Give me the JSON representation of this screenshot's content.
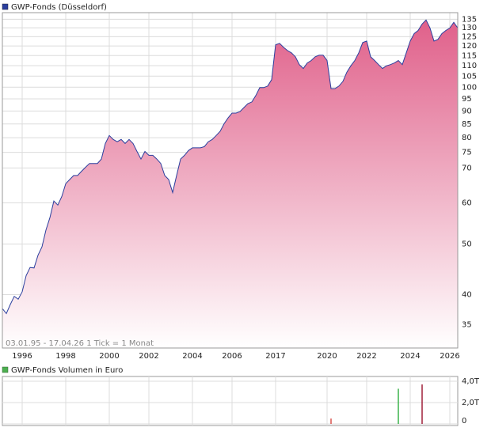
{
  "chart_data": [
    {
      "type": "area",
      "title": "GWP-Fonds (Düsseldorf)",
      "annotation": "03.01.95 - 17.04.26   1 Tick = 1 Monat",
      "categories": [
        null,
        null,
        null,
        null,
        null,
        "1996",
        null,
        null,
        null,
        null,
        null,
        null,
        null,
        null,
        null,
        null,
        "1998",
        null,
        null,
        null,
        null,
        null,
        null,
        null,
        null,
        null,
        null,
        "2000",
        null,
        null,
        null,
        null,
        null,
        null,
        null,
        null,
        null,
        "2002",
        null,
        null,
        null,
        null,
        null,
        null,
        null,
        null,
        null,
        null,
        "2004",
        null,
        null,
        null,
        null,
        null,
        null,
        null,
        null,
        null,
        "2006",
        null,
        null,
        null,
        null,
        null,
        null,
        null,
        null,
        null,
        null,
        "2017",
        null,
        null,
        null,
        null,
        null,
        null,
        null,
        null,
        null,
        null,
        null,
        null,
        "2020",
        null,
        null,
        null,
        null,
        null,
        null,
        null,
        null,
        null,
        "2022",
        null,
        null,
        null,
        null,
        null,
        null,
        null,
        null,
        null,
        null,
        "2024",
        null,
        null,
        null,
        null,
        null,
        null,
        null,
        null,
        null,
        "2026",
        null,
        null
      ],
      "series": [
        {
          "name": "GWP-Fonds (Düsseldorf)",
          "color": "#2b3f9e",
          "fill": "#e0608a",
          "values": [
            37.6,
            36.8,
            38.3,
            39.7,
            39.2,
            40.5,
            43.5,
            45.1,
            45.0,
            47.6,
            49.4,
            53.2,
            56.2,
            60.5,
            59.4,
            61.7,
            65.3,
            66.5,
            67.7,
            67.7,
            69.0,
            70.2,
            71.4,
            71.4,
            71.4,
            72.8,
            78.0,
            80.8,
            79.4,
            78.6,
            79.4,
            78.0,
            79.4,
            78.0,
            75.3,
            72.8,
            75.3,
            74.0,
            74.0,
            72.8,
            71.4,
            67.7,
            66.5,
            62.8,
            67.7,
            72.8,
            74.0,
            75.6,
            76.5,
            76.5,
            76.5,
            76.9,
            78.6,
            79.4,
            80.8,
            82.3,
            85.1,
            87.3,
            89.2,
            89.2,
            89.8,
            91.4,
            93.0,
            93.7,
            96.4,
            99.8,
            99.8,
            100.5,
            103.4,
            120.6,
            121.4,
            119.3,
            117.6,
            116.4,
            114.4,
            110.5,
            108.6,
            111.3,
            112.5,
            114.4,
            115.2,
            115.2,
            112.5,
            99.4,
            99.4,
            100.5,
            102.6,
            106.9,
            109.9,
            112.5,
            116.4,
            121.8,
            122.6,
            114.4,
            112.5,
            110.5,
            108.6,
            109.9,
            110.5,
            111.3,
            112.5,
            110.5,
            116.4,
            122.6,
            126.7,
            128.5,
            132.2,
            134.6,
            129.9,
            122.6,
            123.5,
            126.7,
            128.5,
            129.9,
            133.2,
            129.9
          ]
        }
      ],
      "log_scale": true,
      "ylim": [
        31.6,
        139
      ],
      "yticks": [
        35,
        40,
        50,
        60,
        70,
        75,
        80,
        85,
        90,
        95,
        100,
        105,
        110,
        115,
        120,
        125,
        130,
        135
      ],
      "grid": true
    },
    {
      "type": "bar",
      "title": "GWP-Fonds Volumen in Euro",
      "legend_color": "#4caf50",
      "values": [
        null,
        null,
        null,
        null,
        null,
        null,
        null,
        null,
        null,
        null,
        null,
        null,
        null,
        null,
        null,
        null,
        null,
        null,
        null,
        null,
        null,
        null,
        null,
        null,
        null,
        null,
        null,
        null,
        null,
        null,
        null,
        null,
        null,
        null,
        null,
        null,
        null,
        null,
        null,
        null,
        null,
        null,
        null,
        null,
        null,
        null,
        null,
        null,
        null,
        null,
        null,
        null,
        null,
        null,
        null,
        null,
        null,
        null,
        null,
        null,
        null,
        null,
        null,
        null,
        null,
        null,
        null,
        null,
        null,
        null,
        null,
        null,
        null,
        null,
        null,
        null,
        null,
        null,
        null,
        null,
        null,
        null,
        null,
        0.5,
        null,
        null,
        null,
        null,
        null,
        null,
        null,
        null,
        null,
        null,
        null,
        null,
        null,
        null,
        null,
        null,
        3.3,
        null,
        null,
        null,
        null,
        null,
        3.7,
        null,
        null,
        null,
        null,
        null,
        null,
        null,
        null,
        null
      ],
      "colors": [
        null,
        null,
        null,
        null,
        null,
        null,
        null,
        null,
        null,
        null,
        null,
        null,
        null,
        null,
        null,
        null,
        null,
        null,
        null,
        null,
        null,
        null,
        null,
        null,
        null,
        null,
        null,
        null,
        null,
        null,
        null,
        null,
        null,
        null,
        null,
        null,
        null,
        null,
        null,
        null,
        null,
        null,
        null,
        null,
        null,
        null,
        null,
        null,
        null,
        null,
        null,
        null,
        null,
        null,
        null,
        null,
        null,
        null,
        null,
        null,
        null,
        null,
        null,
        null,
        null,
        null,
        null,
        null,
        null,
        null,
        null,
        null,
        null,
        null,
        null,
        null,
        null,
        null,
        null,
        null,
        null,
        null,
        null,
        "#d9534f",
        null,
        null,
        null,
        null,
        null,
        null,
        null,
        null,
        null,
        null,
        null,
        null,
        null,
        null,
        null,
        null,
        "#3cb44b",
        null,
        null,
        null,
        null,
        null,
        "#a0203a",
        null,
        null,
        null,
        null,
        null,
        null,
        null,
        null,
        null
      ],
      "ylim": [
        0,
        4.3
      ],
      "yticks": [
        0,
        {
          "value": 2,
          "label": "2,0T"
        },
        {
          "value": 4,
          "label": "4,0T"
        }
      ],
      "grid": true
    }
  ]
}
